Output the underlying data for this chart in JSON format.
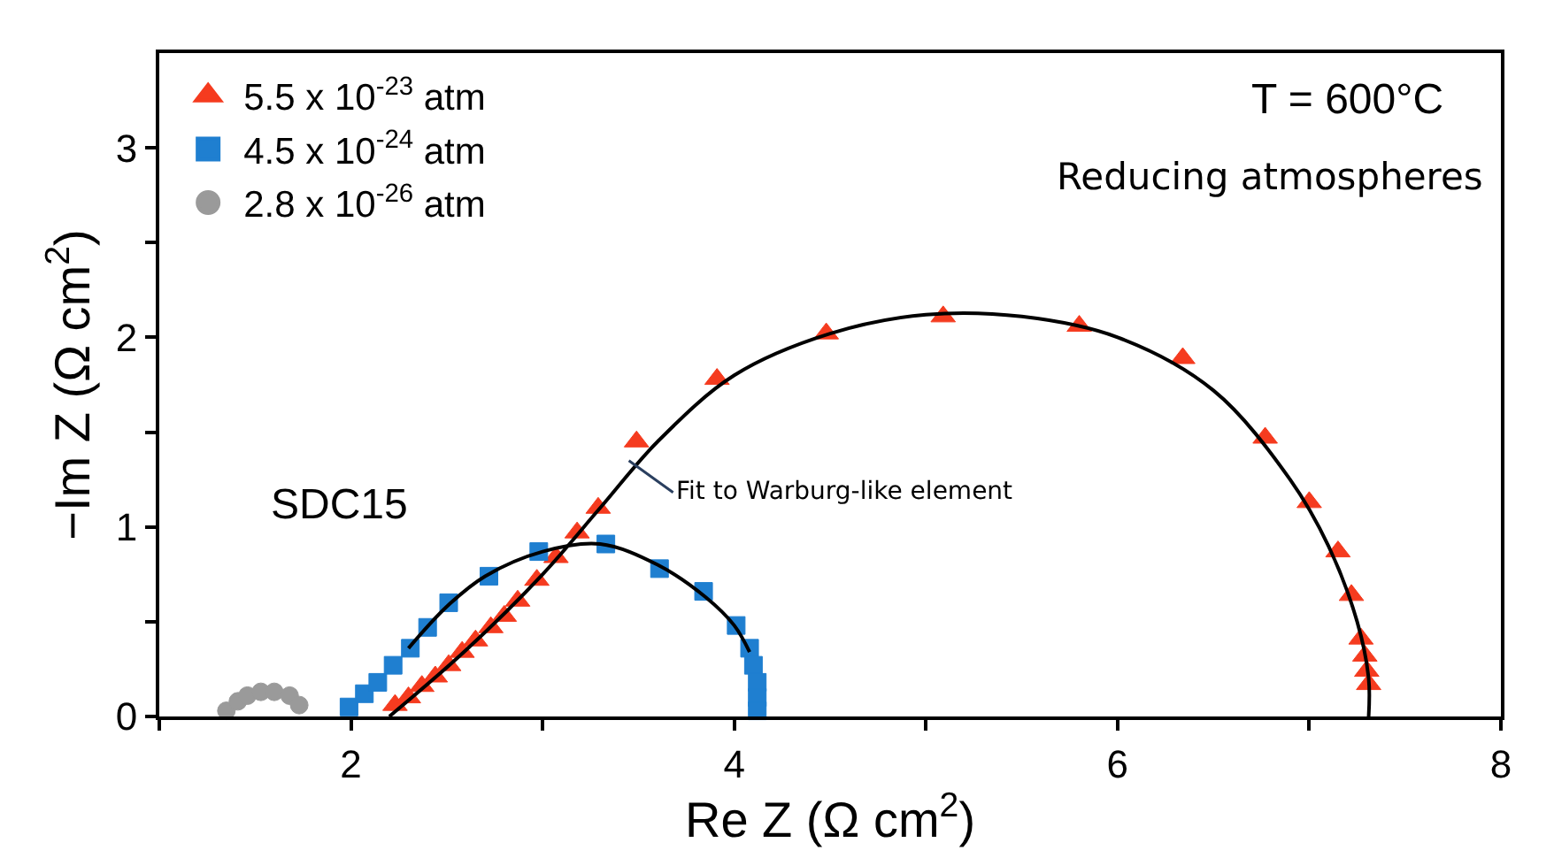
{
  "chart_data": {
    "type": "scatter",
    "xlabel": "Re Z (Ω cm$^{2}$)",
    "ylabel": "−Im Z (Ω cm$^{2}$)",
    "xlim": [
      1,
      8
    ],
    "ylim": [
      0,
      3.5
    ],
    "xticks": [
      {
        "value": 1,
        "label": null
      },
      2,
      {
        "value": 3,
        "label": null
      },
      4,
      {
        "value": 5,
        "label": null
      },
      6,
      {
        "value": 7,
        "label": null
      },
      8
    ],
    "yticks": [
      0,
      {
        "value": 0.5,
        "label": null
      },
      1,
      {
        "value": 1.5,
        "label": null
      },
      2,
      {
        "value": 2.5,
        "label": null
      },
      3
    ],
    "legend": "top left",
    "series": [
      {
        "name": "5.5 x 10$^{-23}$ atm",
        "color": "#f53b1f",
        "marker": "triangle",
        "x": [
          2.23,
          2.3,
          2.37,
          2.44,
          2.51,
          2.58,
          2.65,
          2.73,
          2.8,
          2.87,
          2.97,
          3.07,
          3.18,
          3.29,
          3.49,
          3.91,
          4.48,
          5.09,
          5.8,
          6.34,
          6.77,
          7.0,
          7.15,
          7.22,
          7.27,
          7.29,
          7.3,
          7.31
        ],
        "values": [
          0.06,
          0.1,
          0.16,
          0.21,
          0.27,
          0.34,
          0.4,
          0.47,
          0.53,
          0.61,
          0.72,
          0.84,
          0.97,
          1.1,
          1.45,
          1.78,
          2.02,
          2.11,
          2.06,
          1.89,
          1.47,
          1.13,
          0.87,
          0.64,
          0.41,
          0.32,
          0.24,
          0.17
        ]
      },
      {
        "name": "4.5 x 10$^{-24}$ atm",
        "color": "#1f7fd0",
        "marker": "square",
        "x": [
          1.99,
          2.07,
          2.14,
          2.22,
          2.31,
          2.4,
          2.51,
          2.72,
          2.98,
          3.33,
          3.61,
          3.84,
          4.01,
          4.08,
          4.1,
          4.12,
          4.12,
          4.12
        ],
        "values": [
          0.05,
          0.12,
          0.18,
          0.27,
          0.36,
          0.47,
          0.6,
          0.74,
          0.87,
          0.91,
          0.78,
          0.66,
          0.48,
          0.36,
          0.27,
          0.18,
          0.1,
          0.03
        ]
      },
      {
        "name": "2.8 x 10$^{-26}$ atm",
        "color": "#9a9a9a",
        "marker": "circle",
        "x": [
          1.35,
          1.41,
          1.46,
          1.53,
          1.6,
          1.68,
          1.73
        ],
        "values": [
          0.03,
          0.08,
          0.11,
          0.13,
          0.13,
          0.11,
          0.06
        ]
      },
      {
        "type": "line",
        "color": "#000000",
        "marker": "none",
        "x": [
          2.2,
          2.6,
          3.0,
          3.3,
          3.6,
          4.0,
          4.5,
          5.0,
          5.5,
          6.0,
          6.5,
          6.9,
          7.1,
          7.25,
          7.31,
          7.31
        ],
        "values": [
          0.0,
          0.35,
          0.75,
          1.1,
          1.45,
          1.8,
          2.02,
          2.12,
          2.11,
          2.0,
          1.72,
          1.25,
          0.9,
          0.5,
          0.2,
          0.0
        ]
      },
      {
        "type": "line",
        "color": "#000000",
        "marker": "none",
        "x": [
          2.3,
          2.5,
          2.7,
          3.0,
          3.3,
          3.6,
          3.85,
          4.0,
          4.08
        ],
        "values": [
          0.36,
          0.58,
          0.74,
          0.87,
          0.91,
          0.8,
          0.63,
          0.48,
          0.34
        ]
      }
    ],
    "annotations": [
      {
        "text": "Fit to Warburg-like element",
        "x": 3.45,
        "y": 1.35
      },
      "SDC15",
      "T = 600°C",
      "Reducing atmospheres"
    ]
  }
}
